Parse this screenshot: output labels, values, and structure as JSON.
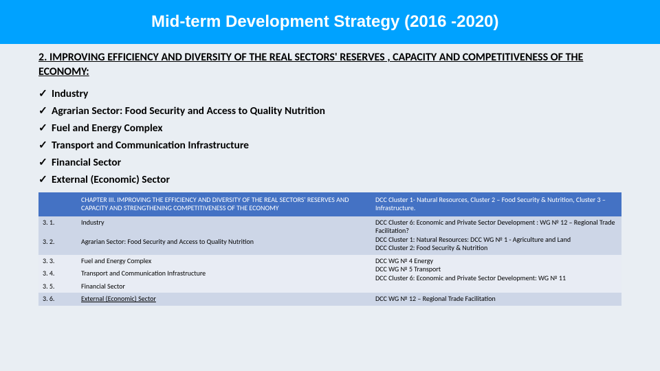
{
  "header": {
    "title": "Mid-term Development Strategy (2016 -2020)"
  },
  "section": {
    "title": "2. IMPROVING EFFICIENCY AND DIVERSITY OF THE REAL SECTORS' RESERVES , CAPACITY AND COMPETITIVENESS OF THE ECONOMY:"
  },
  "checklist": [
    "Industry",
    "Agrarian Sector: Food Security and Access to Quality Nutrition",
    "Fuel and Energy Complex",
    "Transport and Communication Infrastructure",
    "Financial Sector",
    "External (Economic) Sector"
  ],
  "table": {
    "colors": {
      "header_bg": "#4472c4",
      "header_fg": "#ffffff",
      "band1_bg": "#cdd6e7",
      "band2_bg": "#e8ecf4",
      "page_bg": "#e9eef3",
      "banner_bg": "#00a2ff"
    },
    "header": {
      "left": "CHAPTER III. IMPROVING THE EFFICIENCY AND DIVERSITY OF THE REAL SECTORS' RESERVES AND CAPACITY AND STRENGTHENING COMPETITIVENESS OF THE ECONOMY",
      "right": "DCC Cluster 1- Natural Resources, Cluster 2 – Food Security & Nutrition, Cluster 3 – Infrastructure."
    },
    "rows": [
      {
        "band": 1,
        "num": "3. 1.",
        "left": "Industry",
        "right": "DCC Cluster 6: Economic and Private Sector Development : WG № 12 – Regional Trade Facilitation?"
      },
      {
        "band": 1,
        "num": "3. 2.",
        "left": "Agrarian Sector: Food Security and Access to Quality Nutrition",
        "right": "DCC Cluster 1: Natural Resources: DCC WG № 1 - Agriculture and Land\nDCC Cluster 2: Food Security & Nutrition"
      },
      {
        "band": 2,
        "num": "3. 3.",
        "left": "Fuel and Energy Complex",
        "right": "DCC WG № 4 Energy"
      },
      {
        "band": 2,
        "num": "3. 4.",
        "left": "Transport and Communication Infrastructure",
        "right": "DCC WG № 5 Transport"
      },
      {
        "band": 2,
        "num": "3. 5.",
        "left": "Financial Sector",
        "right": "DCC Cluster 6: Economic and Private Sector Development: WG № 11"
      },
      {
        "band": 1,
        "num": "3. 6.",
        "left_underline": true,
        "left": "External (Economic) Sector",
        "right": "DCC WG № 12 – Regional Trade Facilitation"
      }
    ]
  }
}
